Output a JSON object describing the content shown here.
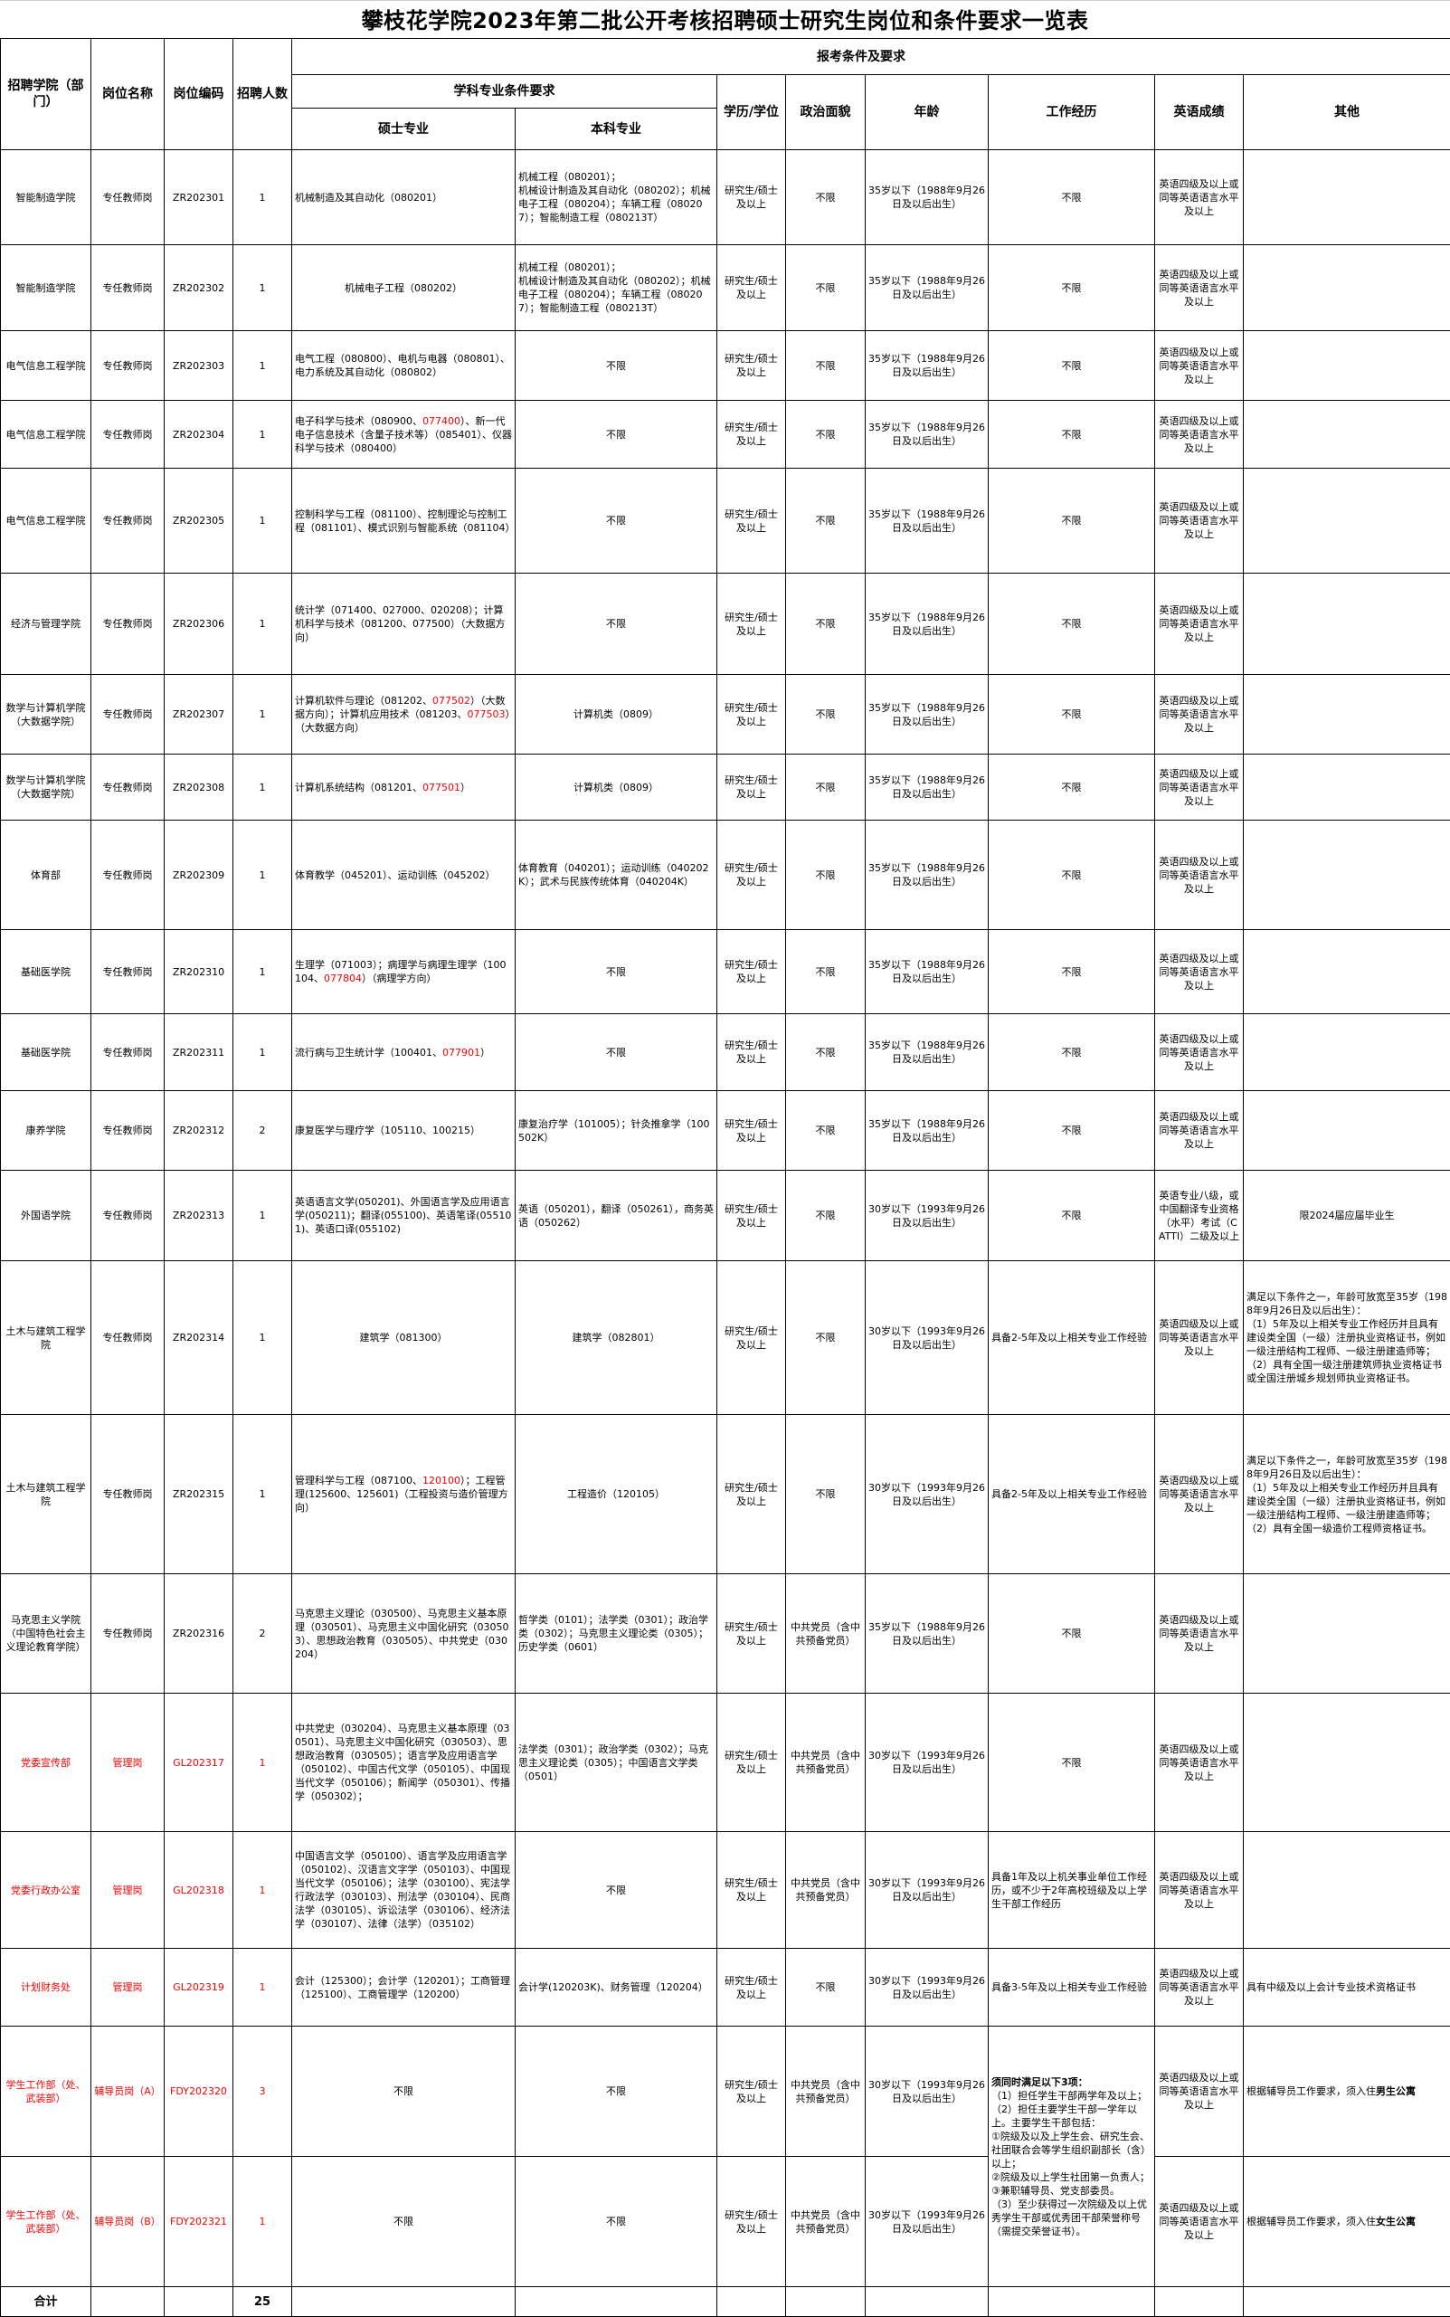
{
  "title": "攀枝花学院2023年第二批公开考核招聘硕士研究生岗位和条件要求一览表",
  "header": {
    "dept": "招聘学院（部门）",
    "position": "岗位名称",
    "code": "岗位编码",
    "count": "招聘人数",
    "conditions": "报考条件及要求",
    "major_req": "学科专业条件要求",
    "master": "硕士专业",
    "bachelor": "本科专业",
    "education": "学历/学位",
    "politics": "政治面貌",
    "age": "年龄",
    "work": "工作经历",
    "english": "英语成绩",
    "other": "其他"
  },
  "colors": {
    "highlight": "#ff0000",
    "border": "#000000"
  },
  "rows": [
    {
      "dept": "智能制造学院",
      "position": "专任教师岗",
      "code": "ZR202301",
      "count": "1",
      "master": "机械制造及其自动化（080201）",
      "bachelor": "机械工程（080201）；\n机械设计制造及其自动化（080202）；机械电子工程（080204）；车辆工程（080207）；智能制造工程（080213T）",
      "education": "研究生/硕士及以上",
      "politics": "不限",
      "age": "35岁以下（1988年9月26日及以后出生）",
      "work": "不限",
      "english": "英语四级及以上或同等英语语言水平及以上",
      "other": ""
    },
    {
      "dept": "智能制造学院",
      "position": "专任教师岗",
      "code": "ZR202302",
      "count": "1",
      "master": "机械电子工程（080202）",
      "bachelor": "机械工程（080201）；\n机械设计制造及其自动化（080202）；机械电子工程（080204）；车辆工程（080207）；智能制造工程（080213T）",
      "education": "研究生/硕士及以上",
      "politics": "不限",
      "age": "35岁以下（1988年9月26日及以后出生）",
      "work": "不限",
      "english": "英语四级及以上或同等英语语言水平及以上",
      "other": ""
    },
    {
      "dept": "电气信息工程学院",
      "position": "专任教师岗",
      "code": "ZR202303",
      "count": "1",
      "master": "电气工程（080800）、电机与电器（080801）、电力系统及其自动化（080802）",
      "bachelor": "不限",
      "education": "研究生/硕士及以上",
      "politics": "不限",
      "age": "35岁以下（1988年9月26日及以后出生）",
      "work": "不限",
      "english": "英语四级及以上或同等英语语言水平及以上",
      "other": ""
    },
    {
      "dept": "电气信息工程学院",
      "position": "专任教师岗",
      "code": "ZR202304",
      "count": "1",
      "master": [
        {
          "t": "电子科学与技术（080900、"
        },
        {
          "t": "077400",
          "c": "red"
        },
        {
          "t": "）、新一代电子信息技术（含量子技术等）（085401）、仪器科学与技术（080400）"
        }
      ],
      "bachelor": "不限",
      "education": "研究生/硕士及以上",
      "politics": "不限",
      "age": "35岁以下（1988年9月26日及以后出生）",
      "work": "不限",
      "english": "英语四级及以上或同等英语语言水平及以上",
      "other": ""
    },
    {
      "dept": "电气信息工程学院",
      "position": "专任教师岗",
      "code": "ZR202305",
      "count": "1",
      "master": "控制科学与工程（081100）、控制理论与控制工程（081101）、模式识别与智能系统（081104）",
      "bachelor": "不限",
      "education": "研究生/硕士及以上",
      "politics": "不限",
      "age": "35岁以下（1988年9月26日及以后出生）",
      "work": "不限",
      "english": "英语四级及以上或同等英语语言水平及以上",
      "other": ""
    },
    {
      "dept": "经济与管理学院",
      "position": "专任教师岗",
      "code": "ZR202306",
      "count": "1",
      "master": "统计学（071400、027000、020208）；计算机科学与技术（081200、077500）（大数据方向）",
      "bachelor": "不限",
      "education": "研究生/硕士及以上",
      "politics": "不限",
      "age": "35岁以下（1988年9月26日及以后出生）",
      "work": "不限",
      "english": "英语四级及以上或同等英语语言水平及以上",
      "other": ""
    },
    {
      "dept": "数学与计算机学院（大数据学院）",
      "position": "专任教师岗",
      "code": "ZR202307",
      "count": "1",
      "master": [
        {
          "t": "计算机软件与理论（081202、"
        },
        {
          "t": "077502",
          "c": "red"
        },
        {
          "t": "）（大数据方向）；计算机应用技术（081203、"
        },
        {
          "t": "077503",
          "c": "red"
        },
        {
          "t": "）（大数据方向）"
        }
      ],
      "bachelor": "计算机类（0809）",
      "education": "研究生/硕士及以上",
      "politics": "不限",
      "age": "35岁以下（1988年9月26日及以后出生）",
      "work": "不限",
      "english": "英语四级及以上或同等英语语言水平及以上",
      "other": ""
    },
    {
      "dept": "数学与计算机学院（大数据学院）",
      "position": "专任教师岗",
      "code": "ZR202308",
      "count": "1",
      "master": [
        {
          "t": "计算机系统结构（081201、"
        },
        {
          "t": "077501",
          "c": "red"
        },
        {
          "t": "）"
        }
      ],
      "bachelor": "计算机类（0809）",
      "education": "研究生/硕士及以上",
      "politics": "不限",
      "age": "35岁以下（1988年9月26日及以后出生）",
      "work": "不限",
      "english": "英语四级及以上或同等英语语言水平及以上",
      "other": ""
    },
    {
      "dept": "体育部",
      "position": "专任教师岗",
      "code": "ZR202309",
      "count": "1",
      "master": "体育教学（045201）、运动训练（045202）",
      "bachelor": "体育教育（040201）；运动训练（040202K）；武术与民族传统体育（040204K）",
      "education": "研究生/硕士及以上",
      "politics": "不限",
      "age": "35岁以下（1988年9月26日及以后出生）",
      "work": "不限",
      "english": "英语四级及以上或同等英语语言水平及以上",
      "other": ""
    },
    {
      "dept": "基础医学院",
      "position": "专任教师岗",
      "code": "ZR202310",
      "count": "1",
      "master": [
        {
          "t": "生理学（071003）；病理学与病理生理学（100104、"
        },
        {
          "t": "077804",
          "c": "red"
        },
        {
          "t": "）（病理学方向）"
        }
      ],
      "bachelor": "不限",
      "education": "研究生/硕士及以上",
      "politics": "不限",
      "age": "35岁以下（1988年9月26日及以后出生）",
      "work": "不限",
      "english": "英语四级及以上或同等英语语言水平及以上",
      "other": ""
    },
    {
      "dept": "基础医学院",
      "position": "专任教师岗",
      "code": "ZR202311",
      "count": "1",
      "master": [
        {
          "t": "流行病与卫生统计学（100401、"
        },
        {
          "t": "077901",
          "c": "red"
        },
        {
          "t": "）"
        }
      ],
      "bachelor": "不限",
      "education": "研究生/硕士及以上",
      "politics": "不限",
      "age": "35岁以下（1988年9月26日及以后出生）",
      "work": "不限",
      "english": "英语四级及以上或同等英语语言水平及以上",
      "other": ""
    },
    {
      "dept": "康养学院",
      "position": "专任教师岗",
      "code": "ZR202312",
      "count": "2",
      "master": "康复医学与理疗学（105110、100215）",
      "bachelor": "康复治疗学（101005）；针灸推拿学（100502K）",
      "education": "研究生/硕士及以上",
      "politics": "不限",
      "age": "35岁以下（1988年9月26日及以后出生）",
      "work": "不限",
      "english": "英语四级及以上或同等英语语言水平及以上",
      "other": ""
    },
    {
      "dept": "外国语学院",
      "position": "专任教师岗",
      "code": "ZR202313",
      "count": "1",
      "master": "英语语言文学(050201)、外国语言学及应用语言学(050211)；翻译(055100)、英语笔译(055101)、英语口译(055102)",
      "bachelor": "英语（050201），翻译（050261），商务英语（050262）",
      "education": "研究生/硕士及以上",
      "politics": "不限",
      "age": "30岁以下（1993年9月26日及以后出生）",
      "work": "不限",
      "english": "英语专业八级，或中国翻译专业资格（水平）考试（CATTI）二级及以上",
      "other": "限2024届应届毕业生"
    },
    {
      "dept": "土木与建筑工程学院",
      "position": "专任教师岗",
      "code": "ZR202314",
      "count": "1",
      "master": "建筑学（081300）",
      "bachelor": "建筑学（082801）",
      "education": "研究生/硕士及以上",
      "politics": "不限",
      "age": "30岁以下（1993年9月26日及以后出生）",
      "work": "具备2-5年及以上相关专业工作经验",
      "english": "英语四级及以上或同等英语语言水平及以上",
      "other": "满足以下条件之一，年龄可放宽至35岁（1988年9月26日及以后出生）：\n（1）5年及以上相关专业工作经历并且具有建设类全国（一级）注册执业资格证书，例如一级注册结构工程师、一级注册建造师等；\n（2）具有全国一级注册建筑师执业资格证书或全国注册城乡规划师执业资格证书。"
    },
    {
      "dept": "土木与建筑工程学院",
      "position": "专任教师岗",
      "code": "ZR202315",
      "count": "1",
      "master": [
        {
          "t": "管理科学与工程（087100、"
        },
        {
          "t": "120100",
          "c": "red"
        },
        {
          "t": "）；工程管理(125600、125601)（工程投资与造价管理方向）"
        }
      ],
      "bachelor": "工程造价（120105）",
      "education": "研究生/硕士及以上",
      "politics": "不限",
      "age": "30岁以下（1993年9月26日及以后出生）",
      "work": "具备2-5年及以上相关专业工作经验",
      "english": "英语四级及以上或同等英语语言水平及以上",
      "other": "满足以下条件之一，年龄可放宽至35岁（1988年9月26日及以后出生）：\n（1）5年及以上相关专业工作经历并且具有建设类全国（一级）注册执业资格证书，例如一级注册结构工程师、一级注册建造师等；\n（2）具有全国一级造价工程师资格证书。"
    },
    {
      "dept": "马克思主义学院（中国特色社会主义理论教育学院）",
      "position": "专任教师岗",
      "code": "ZR202316",
      "count": "2",
      "master": "马克思主义理论（030500）、马克思主义基本原理（030501）、马克思主义中国化研究（030503）、思想政治教育（030505）、中共党史（030204）",
      "bachelor": "哲学类（0101）；法学类（0301）；政治学类（0302）；马克思主义理论类（0305）；历史学类（0601）",
      "education": "研究生/硕士及以上",
      "politics": "中共党员（含中共预备党员）",
      "age": "35岁以下（1988年9月26日及以后出生）",
      "work": "不限",
      "english": "英语四级及以上或同等英语语言水平及以上",
      "other": ""
    },
    {
      "dept": "党委宣传部",
      "position": "管理岗",
      "code": "GL202317",
      "count": "1",
      "highlight": true,
      "master": "中共党史（030204）、马克思主义基本原理（030501）、马克思主义中国化研究（030503）、思想政治教育（030505）；语言学及应用语言学（050102）、中国古代文学（050105）、中国现当代文学（050106）；新闻学（050301）、传播学（050302）；",
      "bachelor": "法学类（0301）；政治学类（0302）；马克思主义理论类（0305）；中国语言文学类（0501）",
      "education": "研究生/硕士及以上",
      "politics": "中共党员（含中共预备党员）",
      "age": "30岁以下（1993年9月26日及以后出生）",
      "work": "不限",
      "english": "英语四级及以上或同等英语语言水平及以上",
      "other": ""
    },
    {
      "dept": "党委行政办公室",
      "position": "管理岗",
      "code": "GL202318",
      "count": "1",
      "highlight": true,
      "master": "中国语言文学（050100）、语言学及应用语言学（050102）、汉语言文字学（050103）、中国现当代文学（050106）；法学（030100）、宪法学行政法学（030103）、刑法学（030104）、民商法学（030105）、诉讼法学（030106）、经济法学（030107）、法律（法学）（035102）",
      "bachelor": "不限",
      "education": "研究生/硕士及以上",
      "politics": "中共党员（含中共预备党员）",
      "age": "30岁以下（1993年9月26日及以后出生）",
      "work": "具备1年及以上机关事业单位工作经历，或不少于2年高校班级及以上学生干部工作经历",
      "english": "英语四级及以上或同等英语语言水平及以上",
      "other": ""
    },
    {
      "dept": "计划财务处",
      "position": "管理岗",
      "code": "GL202319",
      "count": "1",
      "highlight": true,
      "master": "会计（125300）；会计学（120201）；工商管理（125100）、工商管理学（120200）",
      "bachelor": "会计学(120203K)、财务管理（120204）",
      "education": "研究生/硕士及以上",
      "politics": "不限",
      "age": "30岁以下（1993年9月26日及以后出生）",
      "work": "具备3-5年及以上相关专业工作经验",
      "english": "英语四级及以上或同等英语语言水平及以上",
      "other": "具有中级及以上会计专业技术资格证书"
    },
    {
      "dept": "学生工作部（处、武装部）",
      "position": "辅导员岗（A）",
      "code": "FDY202320",
      "count": "3",
      "highlight": true,
      "master": "不限",
      "bachelor": "不限",
      "education": "研究生/硕士及以上",
      "politics": "中共党员（含中共预备党员）",
      "age": "30岁以下（1993年9月26日及以后出生）",
      "work": [
        {
          "t": "须同时满足以下3项：",
          "c": "bold"
        },
        {
          "t": "\n（1）担任学生干部两学年及以上；\n（2）担任主要学生干部一学年以上。主要学生干部包括：\n①院级及以及上学生会、研究生会、社团联合会等学生组织副部长（含）以上；\n②院级及以上学生社团第一负责人；\n③兼职辅导员、党支部委员。\n（3）至少获得过一次院级及以上优秀学生干部或优秀团干部荣誉称号（需提交荣誉证书）。"
        }
      ],
      "english": "英语四级及以上或同等英语语言水平及以上",
      "other": [
        {
          "t": "根据辅导员工作要求，须入住"
        },
        {
          "t": "男生公寓",
          "c": "bold"
        }
      ]
    },
    {
      "dept": "学生工作部（处、武装部）",
      "position": "辅导员岗（B）",
      "code": "FDY202321",
      "count": "1",
      "highlight": true,
      "master": "不限",
      "bachelor": "不限",
      "education": "研究生/硕士及以上",
      "politics": "中共党员（含中共预备党员）",
      "age": "30岁以下（1993年9月26日及以后出生）",
      "english": "英语四级及以上或同等英语语言水平及以上",
      "other": [
        {
          "t": "根据辅导员工作要求，须入住"
        },
        {
          "t": "女生公寓",
          "c": "bold"
        }
      ]
    }
  ],
  "total": {
    "label": "合计",
    "count": "25"
  }
}
